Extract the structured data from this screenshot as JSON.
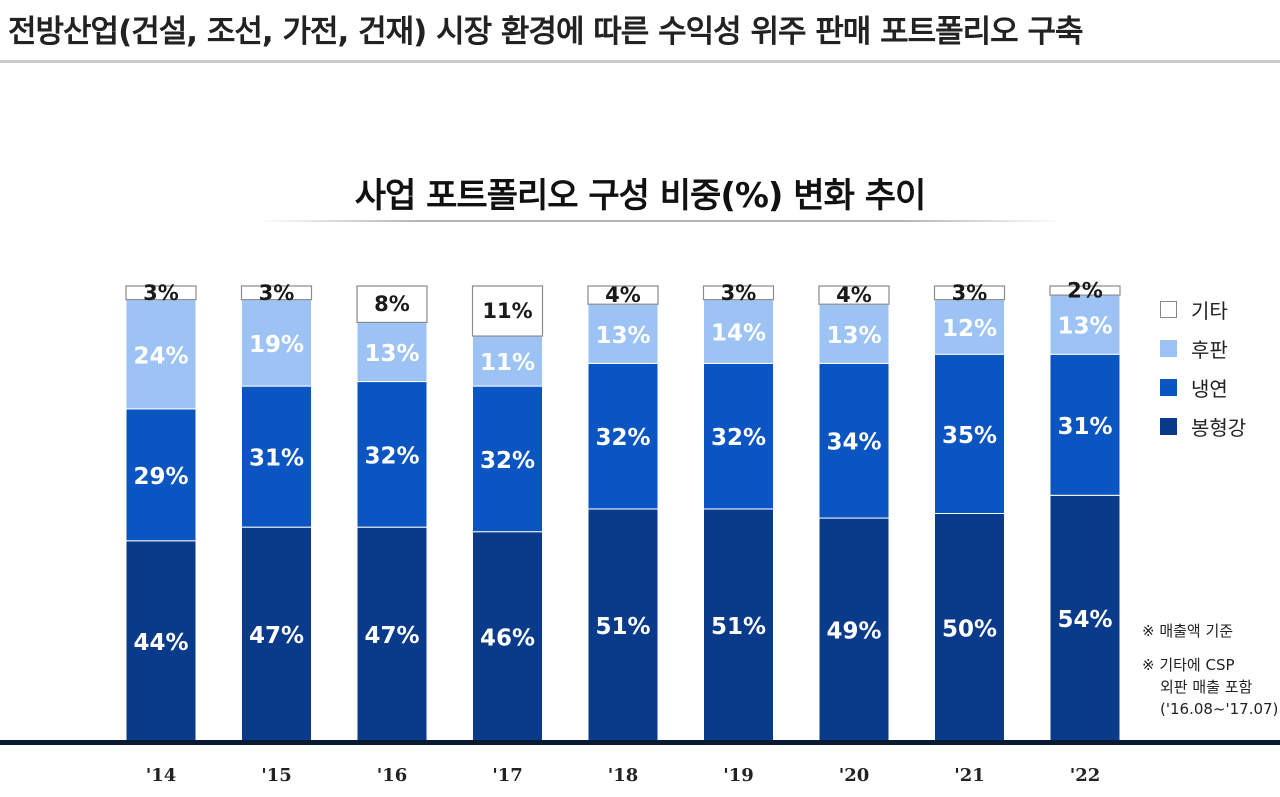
{
  "header": {
    "title": "전방산업(건설, 조선, 가전, 건재) 시장 환경에 따른 수익성 위주 판매 포트폴리오 구축"
  },
  "chart_data": {
    "type": "bar",
    "stacked": true,
    "title": "사업 포트폴리오 구성 비중(%) 변화 추이",
    "xlabel": "",
    "ylabel": "",
    "ylim": [
      0,
      100
    ],
    "grid": false,
    "legend_position": "right",
    "categories": [
      "'14",
      "'15",
      "'16",
      "'17",
      "'18",
      "'19",
      "'20",
      "'21",
      "'22"
    ],
    "series": [
      {
        "name": "봉형강",
        "color": "#0a3a8a",
        "values": [
          44,
          47,
          47,
          46,
          51,
          51,
          49,
          50,
          54
        ]
      },
      {
        "name": "냉연",
        "color": "#0b55c2",
        "values": [
          29,
          31,
          32,
          32,
          32,
          32,
          34,
          35,
          31
        ]
      },
      {
        "name": "후판",
        "color": "#9cc3f4",
        "values": [
          24,
          19,
          13,
          11,
          13,
          14,
          13,
          12,
          13
        ]
      },
      {
        "name": "기타",
        "color": "#ffffff",
        "values": [
          3,
          3,
          8,
          11,
          4,
          3,
          4,
          3,
          2
        ]
      }
    ],
    "legend_order": [
      "기타",
      "후판",
      "냉연",
      "봉형강"
    ],
    "value_suffix": "%",
    "notes": [
      "※ 매출액 기준",
      "※ 기타에 CSP",
      "외판 매출 포함",
      "('16.08~'17.07)"
    ]
  }
}
